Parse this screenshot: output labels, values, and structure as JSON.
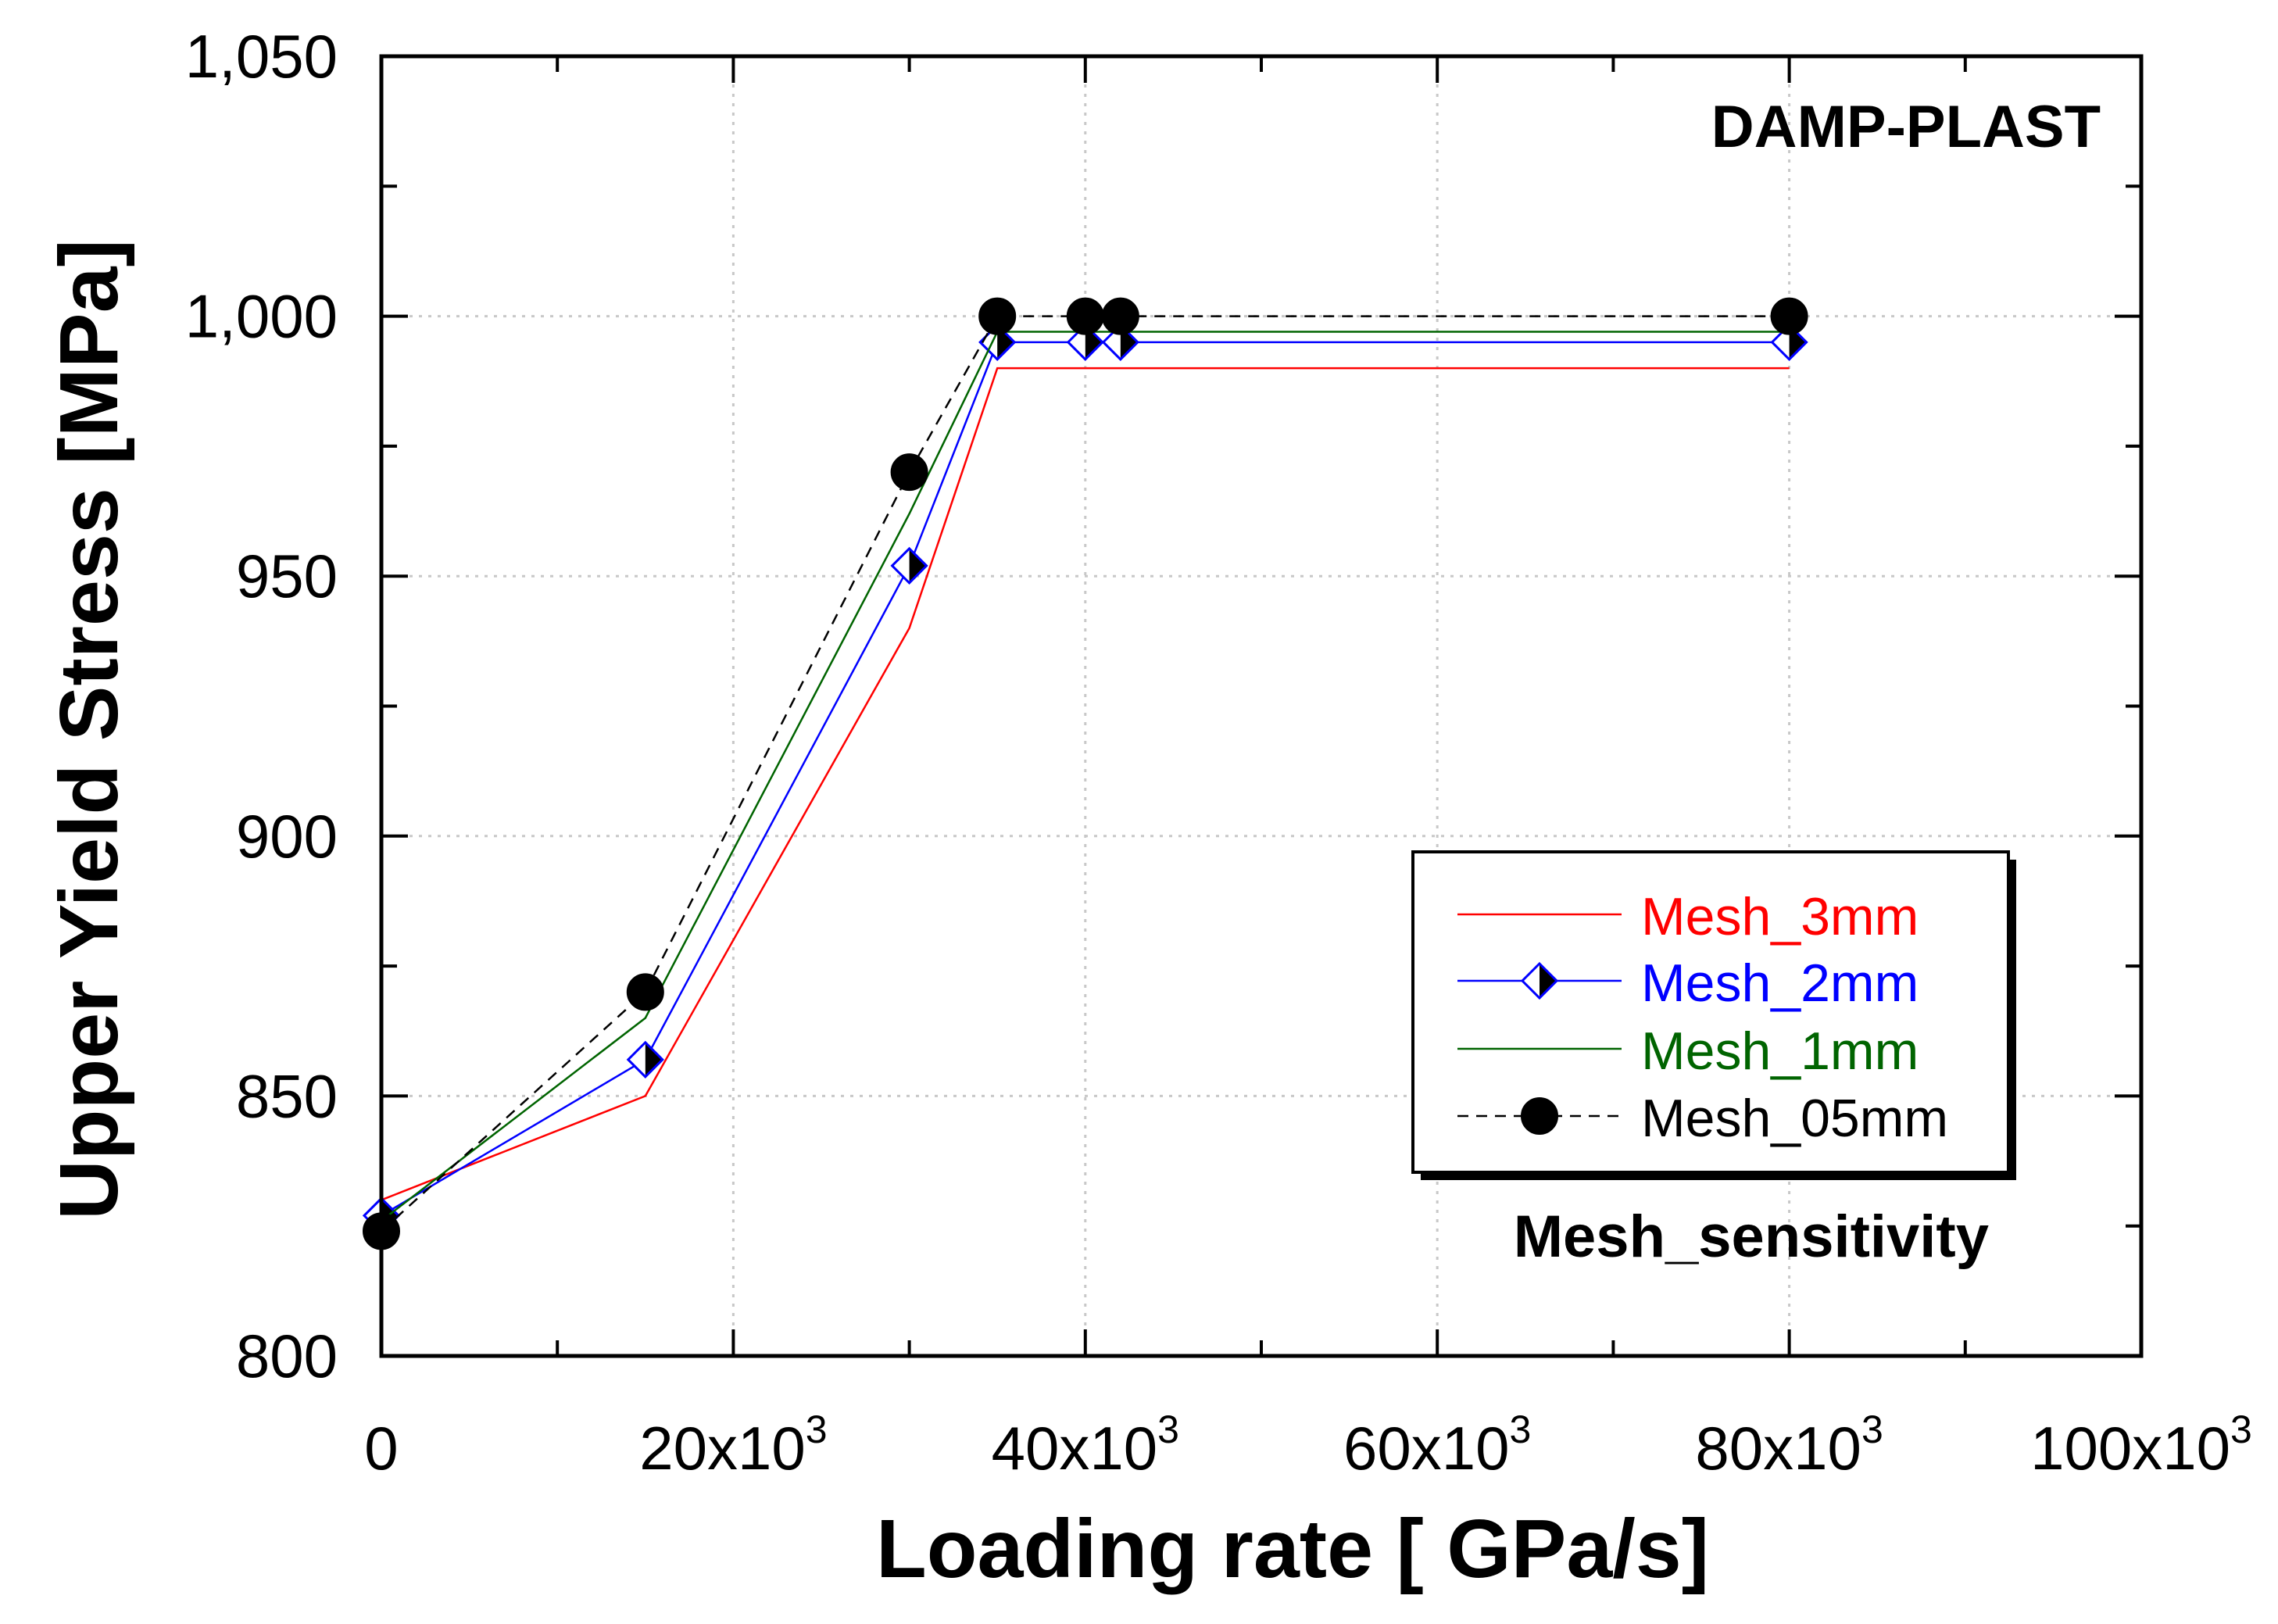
{
  "chart_data": {
    "type": "line",
    "xlabel": "Loading rate [ GPa/s]",
    "ylabel": "Upper Yield Stress [MPa]",
    "annotations": {
      "top_right": "DAMP-PLAST",
      "bottom_right": "Mesh_sensitivity"
    },
    "xlim": [
      0,
      100000
    ],
    "ylim": [
      800,
      1050
    ],
    "x_ticks": [
      {
        "value": 0,
        "base": "0",
        "exp": ""
      },
      {
        "value": 20000,
        "base": "20x10",
        "exp": "3"
      },
      {
        "value": 40000,
        "base": "40x10",
        "exp": "3"
      },
      {
        "value": 60000,
        "base": "60x10",
        "exp": "3"
      },
      {
        "value": 80000,
        "base": "80x10",
        "exp": "3"
      },
      {
        "value": 100000,
        "base": "100x10",
        "exp": "3"
      }
    ],
    "y_ticks": [
      {
        "value": 800,
        "label": "800"
      },
      {
        "value": 850,
        "label": "850"
      },
      {
        "value": 900,
        "label": "900"
      },
      {
        "value": 950,
        "label": "950"
      },
      {
        "value": 1000,
        "label": "1,000"
      },
      {
        "value": 1050,
        "label": "1,050"
      }
    ],
    "grid": true,
    "legend_position": "center-right",
    "series": [
      {
        "name": "Mesh_3mm",
        "color": "#ff0000",
        "dash": "solid",
        "marker": "none",
        "x": [
          0,
          15000,
          30000,
          35000,
          40000,
          42000,
          80000
        ],
        "y": [
          830,
          850,
          940,
          990,
          990,
          990,
          990
        ]
      },
      {
        "name": "Mesh_2mm",
        "color": "#0000ff",
        "dash": "solid",
        "marker": "half-filled-diamond",
        "x": [
          0,
          15000,
          30000,
          35000,
          40000,
          42000,
          80000
        ],
        "y": [
          827,
          857,
          952,
          995,
          995,
          995,
          995
        ]
      },
      {
        "name": "Mesh_1mm",
        "color": "#006400",
        "dash": "solid",
        "marker": "none",
        "x": [
          0,
          15000,
          30000,
          35000,
          40000,
          42000,
          80000
        ],
        "y": [
          826,
          865,
          962,
          997,
          997,
          997,
          997
        ]
      },
      {
        "name": "Mesh_05mm",
        "color": "#000000",
        "dash": "dashed",
        "marker": "filled-circle",
        "x": [
          0,
          15000,
          30000,
          35000,
          40000,
          42000,
          80000
        ],
        "y": [
          824,
          870,
          970,
          1000,
          1000,
          1000,
          1000
        ]
      }
    ]
  }
}
